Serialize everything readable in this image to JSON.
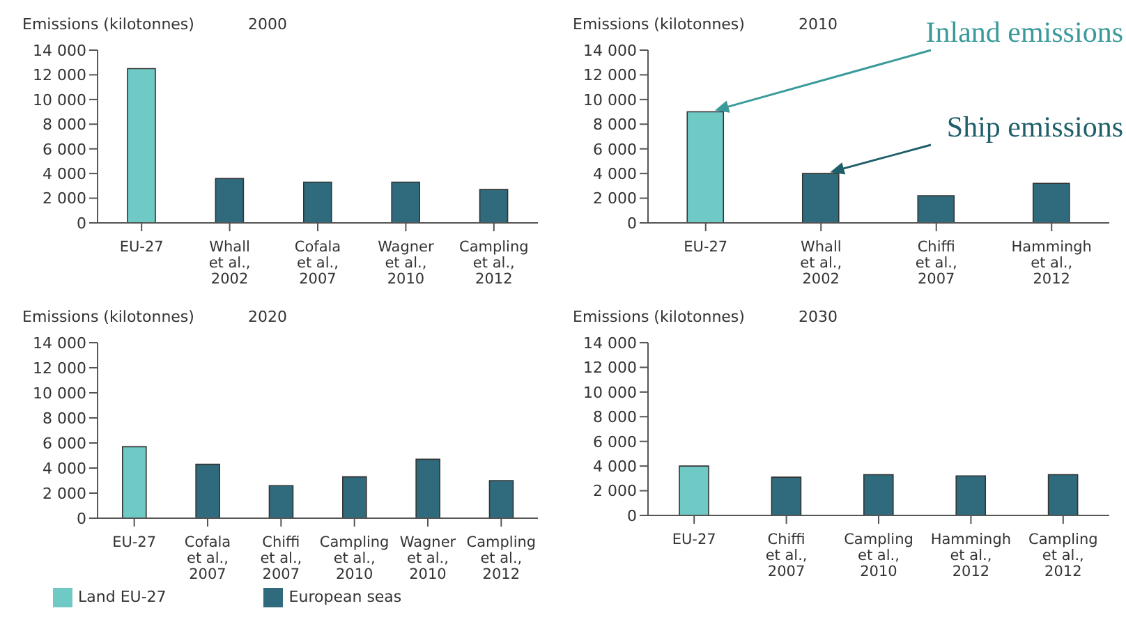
{
  "chart_data": [
    {
      "type": "bar",
      "title": "2000",
      "ylabel": "Emissions (kilotonnes)",
      "categories": [
        "EU-27",
        "Whall\net al.,\n2002",
        "Cofala\net al.,\n2007",
        "Wagner\net al.,\n2010",
        "Campling\net al.,\n2012"
      ],
      "series": [
        {
          "color": "#6fcac6",
          "values": [
            12500,
            null,
            null,
            null,
            null
          ]
        },
        {
          "color": "#2f6b7c",
          "values": [
            null,
            3600,
            3300,
            3300,
            2700
          ]
        }
      ],
      "ylim": [
        0,
        14000
      ],
      "yticks": [
        {
          "value": 0,
          "label": "0"
        },
        {
          "value": 2000,
          "label": "2 000"
        },
        {
          "value": 4000,
          "label": "4 000"
        },
        {
          "value": 6000,
          "label": "6 000"
        },
        {
          "value": 8000,
          "label": "8 000"
        },
        {
          "value": 10000,
          "label": "10 000"
        },
        {
          "value": 12000,
          "label": "12 000"
        },
        {
          "value": 14000,
          "label": "14 000"
        }
      ],
      "grid": false,
      "legend": false
    },
    {
      "type": "bar",
      "title": "2010",
      "ylabel": "Emissions (kilotonnes)",
      "categories": [
        "EU-27",
        "Whall\net al.,\n2002",
        "Chiffi\net al.,\n2007",
        "Hammingh\net al.,\n2012"
      ],
      "series": [
        {
          "color": "#6fcac6",
          "values": [
            9000,
            null,
            null,
            null
          ]
        },
        {
          "color": "#2f6b7c",
          "values": [
            null,
            4000,
            2200,
            3200
          ]
        }
      ],
      "ylim": [
        0,
        14000
      ],
      "yticks": [
        {
          "value": 0,
          "label": "0"
        },
        {
          "value": 2000,
          "label": "2 000"
        },
        {
          "value": 4000,
          "label": "4 000"
        },
        {
          "value": 6000,
          "label": "6 000"
        },
        {
          "value": 8000,
          "label": "8 000"
        },
        {
          "value": 10000,
          "label": "10 000"
        },
        {
          "value": 12000,
          "label": "12 000"
        },
        {
          "value": 14000,
          "label": "14 000"
        }
      ],
      "grid": false,
      "legend": false,
      "annotations": [
        "Inland emissions",
        "Ship emissions"
      ]
    },
    {
      "type": "bar",
      "title": "2020",
      "ylabel": "Emissions (kilotonnes)",
      "categories": [
        "EU-27",
        "Cofala\net al.,\n2007",
        "Chiffi\net al.,\n2007",
        "Campling\net al.,\n2010",
        "Wagner\net al.,\n2010",
        "Campling\net al.,\n2012"
      ],
      "series": [
        {
          "name": "Land EU-27",
          "color": "#6fcac6",
          "values": [
            5700,
            null,
            null,
            null,
            null,
            null
          ]
        },
        {
          "name": "European seas",
          "color": "#2f6b7c",
          "values": [
            null,
            4300,
            2600,
            3300,
            4700,
            3000
          ]
        }
      ],
      "ylim": [
        0,
        14000
      ],
      "yticks": [
        {
          "value": 0,
          "label": "0"
        },
        {
          "value": 2000,
          "label": "2 000"
        },
        {
          "value": 4000,
          "label": "4 000"
        },
        {
          "value": 6000,
          "label": "6 000"
        },
        {
          "value": 8000,
          "label": "8 000"
        },
        {
          "value": 10000,
          "label": "10 000"
        },
        {
          "value": 12000,
          "label": "12 000"
        },
        {
          "value": 14000,
          "label": "14 000"
        }
      ],
      "grid": false,
      "legend": "bottom left"
    },
    {
      "type": "bar",
      "title": "2030",
      "ylabel": "Emissions (kilotonnes)",
      "categories": [
        "EU-27",
        "Chiffi\net al.,\n2007",
        "Campling\net al.,\n2010",
        "Hammingh\net al.,\n2012",
        "Campling\net al.,\n2012"
      ],
      "series": [
        {
          "color": "#6fcac6",
          "values": [
            4000,
            null,
            null,
            null,
            null
          ]
        },
        {
          "color": "#2f6b7c",
          "values": [
            null,
            3100,
            3300,
            3200,
            3300
          ]
        }
      ],
      "ylim": [
        0,
        14000
      ],
      "yticks": [
        {
          "value": 0,
          "label": "0"
        },
        {
          "value": 2000,
          "label": "2 000"
        },
        {
          "value": 4000,
          "label": "4 000"
        },
        {
          "value": 6000,
          "label": "6 000"
        },
        {
          "value": 8000,
          "label": "8 000"
        },
        {
          "value": 10000,
          "label": "10 000"
        },
        {
          "value": 12000,
          "label": "12 000"
        },
        {
          "value": 14000,
          "label": "14 000"
        }
      ],
      "grid": false,
      "legend": false
    }
  ]
}
